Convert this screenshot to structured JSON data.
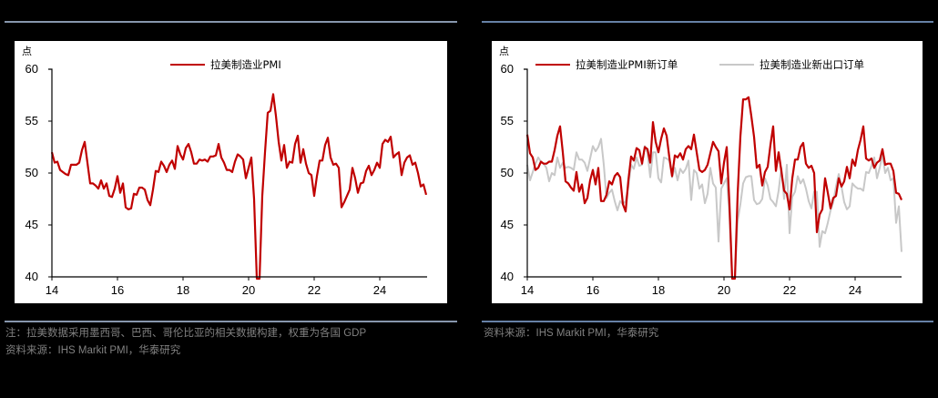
{
  "left": {
    "unit": "点",
    "legend": [
      {
        "label": "拉美制造业PMI",
        "color": "#c00000"
      }
    ],
    "note_line1": "注：拉美数据采用墨西哥、巴西、哥伦比亚的相关数据构建，权重为各国 GDP",
    "note_line2": "资料来源：IHS Markit PMI，华泰研究"
  },
  "right": {
    "unit": "点",
    "legend": [
      {
        "label": "拉美制造业PMI新订单",
        "color": "#c00000"
      },
      {
        "label": "拉美制造业新出口订单",
        "color": "#c8c8c8"
      }
    ],
    "note_line1": "资料来源：IHS Markit PMI，华泰研究"
  },
  "chart_data": [
    {
      "type": "line",
      "title": "",
      "xlabel": "",
      "ylabel": "点",
      "ylim": [
        40,
        60
      ],
      "yticks": [
        40,
        45,
        50,
        55,
        60
      ],
      "xticks": [
        "14",
        "16",
        "18",
        "20",
        "22",
        "24"
      ],
      "x_start": "2014-01",
      "frequency": "monthly",
      "legend_position": "top-center",
      "grid": false,
      "series": [
        {
          "name": "拉美制造业PMI",
          "color": "#c00000",
          "values": [
            52.0,
            51.0,
            51.1,
            50.3,
            50.1,
            49.9,
            49.8,
            50.8,
            50.8,
            50.8,
            51.0,
            52.2,
            53.0,
            51.0,
            49.0,
            49.0,
            48.8,
            48.5,
            49.3,
            48.5,
            49.0,
            47.8,
            47.7,
            48.5,
            49.7,
            48.1,
            49.0,
            46.7,
            46.5,
            46.6,
            48.0,
            47.9,
            48.6,
            48.6,
            48.4,
            47.4,
            46.9,
            48.4,
            50.2,
            50.1,
            51.1,
            50.7,
            50.1,
            50.8,
            51.2,
            50.4,
            52.6,
            51.8,
            51.3,
            52.4,
            52.8,
            52.0,
            50.9,
            50.9,
            51.3,
            51.2,
            51.3,
            51.1,
            51.6,
            51.6,
            51.7,
            52.8,
            51.5,
            51.0,
            50.3,
            50.3,
            50.1,
            51.1,
            51.8,
            51.6,
            51.3,
            49.5,
            50.5,
            51.5,
            47.5,
            35.0,
            36.0,
            47.8,
            52.0,
            55.8,
            56.0,
            57.6,
            55.5,
            53.0,
            51.2,
            52.7,
            50.5,
            51.1,
            51.0,
            52.8,
            53.6,
            51.0,
            52.3,
            50.9,
            50.0,
            49.8,
            47.8,
            49.7,
            51.2,
            51.2,
            52.7,
            53.4,
            51.5,
            50.8,
            50.9,
            50.5,
            46.7,
            47.2,
            47.8,
            48.4,
            50.5,
            49.5,
            48.1,
            49.0,
            49.1,
            50.2,
            50.7,
            49.8,
            50.3,
            51.0,
            50.5,
            52.8,
            53.2,
            53.0,
            53.5,
            51.5,
            51.8,
            52.0,
            49.8,
            51.0,
            51.5,
            51.7,
            50.8,
            51.0,
            50.0,
            48.7,
            48.9,
            47.9
          ]
        }
      ]
    },
    {
      "type": "line",
      "title": "",
      "xlabel": "",
      "ylabel": "点",
      "ylim": [
        40,
        60
      ],
      "yticks": [
        40,
        45,
        50,
        55,
        60
      ],
      "xticks": [
        "14",
        "16",
        "18",
        "20",
        "22",
        "24"
      ],
      "x_start": "2014-01",
      "frequency": "monthly",
      "legend_position": "top",
      "grid": false,
      "series": [
        {
          "name": "拉美制造业PMI新订单",
          "color": "#c00000",
          "values": [
            53.7,
            51.9,
            51.5,
            50.3,
            50.5,
            51.1,
            50.9,
            50.9,
            51.1,
            51.1,
            52.2,
            53.6,
            54.5,
            52.0,
            49.2,
            49.0,
            48.6,
            48.3,
            50.1,
            48.2,
            48.9,
            47.1,
            47.6,
            49.3,
            50.3,
            48.9,
            50.5,
            47.3,
            47.3,
            47.9,
            49.2,
            48.9,
            49.7,
            50.0,
            49.6,
            47.0,
            46.3,
            49.3,
            51.6,
            51.2,
            52.4,
            52.2,
            50.9,
            52.5,
            52.3,
            51.0,
            54.9,
            53.0,
            52.0,
            53.3,
            54.3,
            53.6,
            51.5,
            49.7,
            51.7,
            51.5,
            51.9,
            51.3,
            52.3,
            52.6,
            52.3,
            53.7,
            52.0,
            50.3,
            50.1,
            50.3,
            50.8,
            51.9,
            53.0,
            52.5,
            52.1,
            49.0,
            51.0,
            52.5,
            47.0,
            35.0,
            38.0,
            48.0,
            53.5,
            57.1,
            57.1,
            57.3,
            55.5,
            53.5,
            50.5,
            50.8,
            48.8,
            50.1,
            50.6,
            52.7,
            54.5,
            50.2,
            52.0,
            50.2,
            48.3,
            48.0,
            46.5,
            49.5,
            51.3,
            51.3,
            52.5,
            52.9,
            50.9,
            50.5,
            50.7,
            50.0,
            44.3,
            46.0,
            46.5,
            49.5,
            48.1,
            46.6,
            47.6,
            47.8,
            49.5,
            48.7,
            49.2,
            50.6,
            49.5,
            51.3,
            50.7,
            52.2,
            53.2,
            54.5,
            51.4,
            51.2,
            51.4,
            50.5,
            51.0,
            51.2,
            52.3,
            50.8,
            50.9,
            50.9,
            50.2,
            48.1,
            48.0,
            47.4
          ]
        },
        {
          "name": "拉美制造业新出口订单",
          "color": "#c8c8c8",
          "values": [
            50.8,
            49.3,
            50.1,
            50.9,
            51.5,
            51.1,
            50.9,
            50.5,
            49.2,
            50.0,
            49.8,
            51.5,
            50.5,
            51.0,
            50.5,
            50.6,
            50.5,
            50.3,
            52.0,
            51.3,
            51.3,
            51.0,
            50.2,
            51.4,
            52.6,
            52.1,
            52.5,
            53.3,
            50.8,
            47.6,
            48.1,
            48.4,
            47.3,
            46.4,
            47.3,
            47.0,
            47.3,
            48.7,
            50.8,
            50.4,
            51.5,
            50.7,
            50.8,
            52.6,
            52.0,
            49.6,
            52.0,
            52.0,
            49.5,
            49.1,
            51.5,
            51.4,
            51.2,
            49.6,
            50.5,
            49.3,
            50.4,
            50.0,
            50.4,
            51.2,
            47.4,
            50.3,
            50.0,
            48.5,
            48.9,
            47.1,
            48.0,
            50.5,
            49.0,
            48.6,
            43.4,
            48.5,
            49.0,
            49.5,
            46.0,
            38.0,
            40.0,
            45.4,
            47.0,
            49.0,
            49.6,
            49.7,
            49.7,
            47.4,
            47.0,
            47.1,
            47.5,
            49.5,
            48.8,
            47.5,
            47.2,
            46.8,
            48.3,
            50.5,
            47.5,
            50.8,
            44.2,
            47.7,
            48.2,
            49.7,
            49.0,
            49.4,
            48.5,
            47.3,
            46.6,
            48.2,
            48.2,
            42.9,
            44.4,
            44.2,
            45.2,
            46.4,
            47.2,
            48.7,
            49.9,
            48.7,
            47.2,
            46.5,
            46.8,
            49.0,
            48.7,
            48.5,
            48.5,
            48.3,
            50.1,
            50.0,
            50.7,
            51.5,
            49.5,
            50.5,
            51.8,
            50.0,
            50.5,
            49.3,
            49.5,
            45.2,
            46.8,
            42.4
          ]
        }
      ]
    }
  ]
}
